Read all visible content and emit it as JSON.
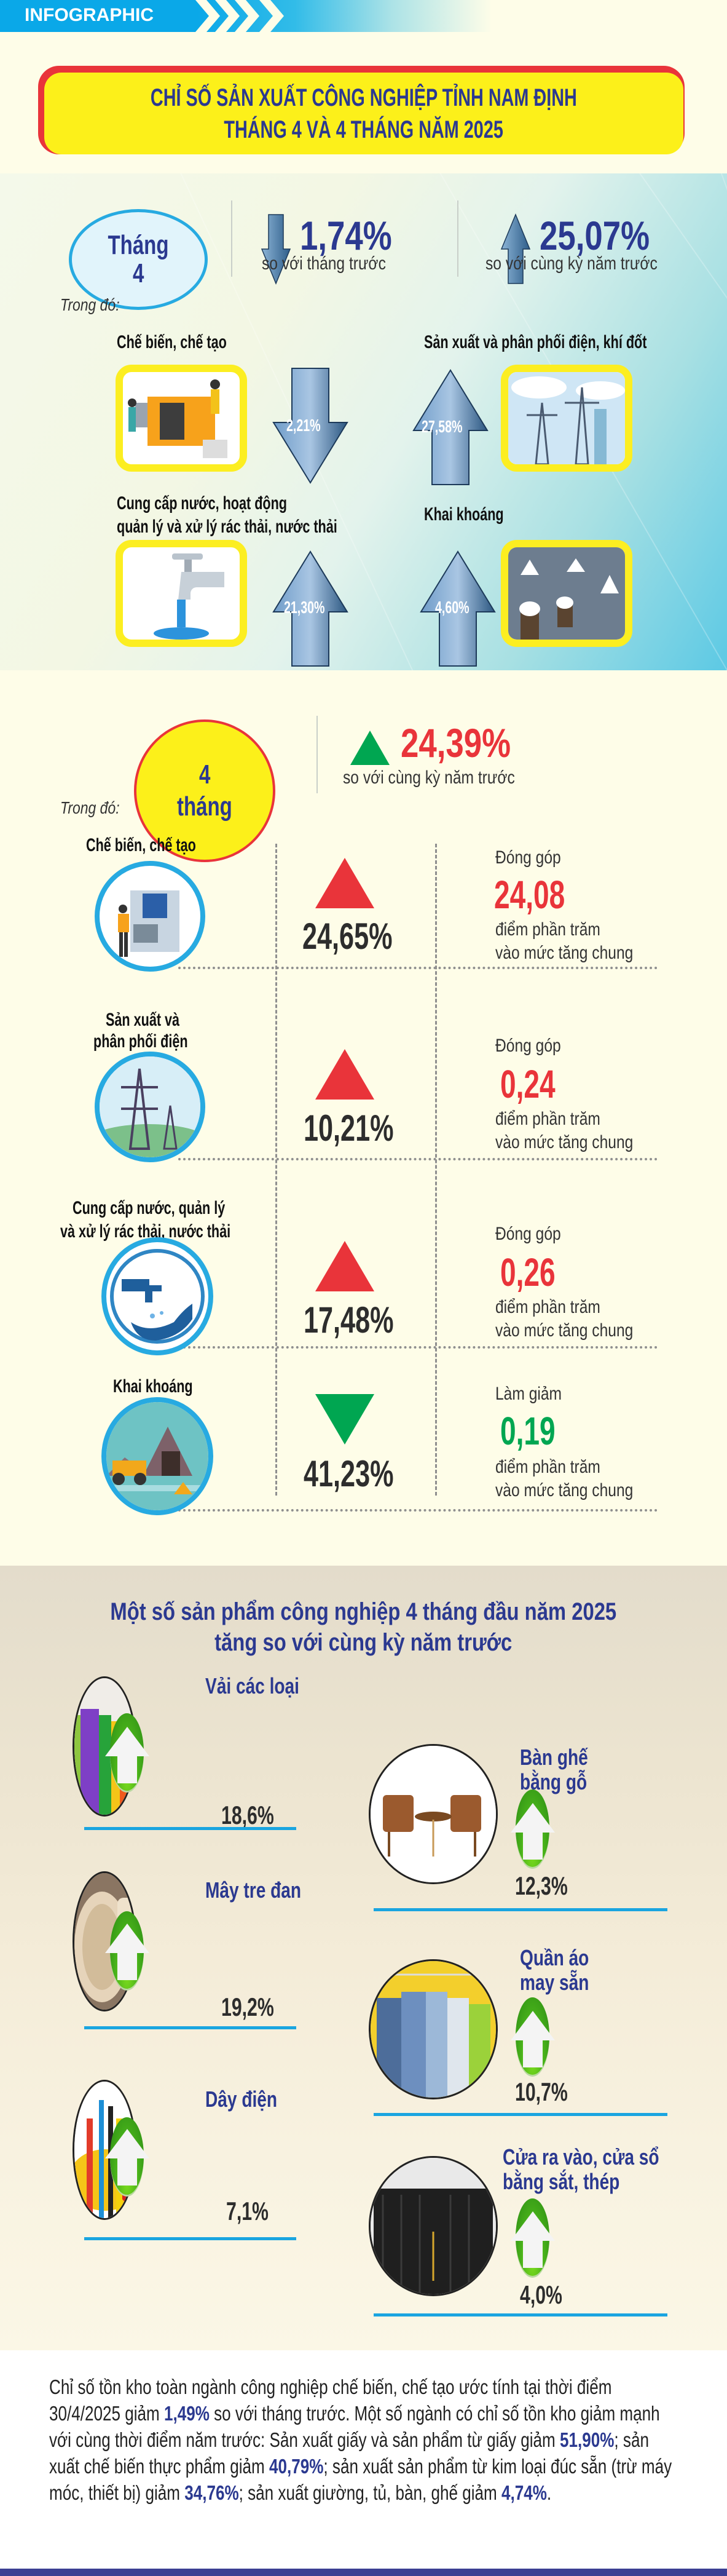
{
  "header": {
    "label": "INFOGRAPHIC",
    "accent_color": "#0aa8e8"
  },
  "title": {
    "line1": "CHỈ SỐ SẢN XUẤT CÔNG NGHIỆP TỈNH NAM ĐỊNH",
    "line2": "THÁNG 4 VÀ 4 THÁNG NĂM 2025",
    "text_color": "#2b3990",
    "bg_color": "#fcf01a",
    "border_color": "#e9343a"
  },
  "month4": {
    "badge_line1": "Tháng",
    "badge_line2": "4",
    "vs_prev_month": {
      "icon": "arrow-down-icon",
      "value": "1,74%",
      "label": "so với tháng trước"
    },
    "vs_prev_year": {
      "icon": "arrow-up-icon",
      "value": "25,07%",
      "label": "so với cùng kỳ năm trước"
    },
    "trong_do": "Trong đó:",
    "sectors": [
      {
        "name": "Chế biến, chế tạo",
        "direction": "down",
        "value": "2,21%",
        "icon": "factory-icon"
      },
      {
        "name": "Sản xuất và phân phối điện, khí đốt",
        "direction": "up",
        "value": "27,58%",
        "icon": "power-tower-icon"
      },
      {
        "name_line1": "Cung cấp nước, hoạt động",
        "name_line2": "quản lý và xử lý rác thải, nước thải",
        "direction": "up",
        "value": "21,30%",
        "icon": "water-tap-icon"
      },
      {
        "name": "Khai khoáng",
        "direction": "up",
        "value": "4,60%",
        "icon": "salt-field-icon"
      }
    ]
  },
  "four_months": {
    "badge_line1": "4",
    "badge_line2": "tháng",
    "total": {
      "icon": "triangle-up-icon",
      "value": "24,39%",
      "label": "so với cùng kỳ năm trước"
    },
    "trong_do": "Trong đó:",
    "sectors": [
      {
        "name_line1": "Chế biến, chế tạo",
        "name_line2": "",
        "direction": "up",
        "value": "24,65%",
        "contrib_label": "Đóng góp",
        "contrib_value": "24,08",
        "contrib_desc1": "điểm phần trăm",
        "contrib_desc2": "vào mức tăng chung",
        "icon": "machine-operator-icon"
      },
      {
        "name_line1": "Sản xuất và",
        "name_line2": "phân phối điện",
        "direction": "up",
        "value": "10,21%",
        "contrib_label": "Đóng góp",
        "contrib_value": "0,24",
        "contrib_desc1": "điểm phần trăm",
        "contrib_desc2": "vào mức tăng chung",
        "icon": "power-line-icon"
      },
      {
        "name_line1": "Cung cấp nước, quản lý",
        "name_line2": "và xử lý rác thải, nước thải",
        "direction": "up",
        "value": "17,48%",
        "contrib_label": "Đóng góp",
        "contrib_value": "0,26",
        "contrib_desc1": "điểm phần trăm",
        "contrib_desc2": "vào mức tăng chung",
        "icon": "tap-hand-icon"
      },
      {
        "name_line1": "Khai khoáng",
        "name_line2": "",
        "direction": "down",
        "value": "41,23%",
        "contrib_label": "Làm giảm",
        "contrib_value": "0,19",
        "contrib_desc1": "điểm phần trăm",
        "contrib_desc2": "vào mức tăng chung",
        "icon": "mining-truck-icon"
      }
    ],
    "colors": {
      "up": "#e9343a",
      "down": "#00a651"
    }
  },
  "products": {
    "title_line1": "Một số sản phẩm công nghiệp 4 tháng đầu năm 2025",
    "title_line2": "tăng so với cùng kỳ năm trước",
    "items": [
      {
        "name_line1": "Vải các loại",
        "name_line2": "",
        "value": "18,6%",
        "icon": "fabric-rolls-icon"
      },
      {
        "name_line1": "Bàn ghế",
        "name_line2": "bằng gỗ",
        "value": "12,3%",
        "icon": "wood-furniture-icon"
      },
      {
        "name_line1": "Mây tre đan",
        "name_line2": "",
        "value": "19,2%",
        "icon": "wicker-basket-icon"
      },
      {
        "name_line1": "Quần áo",
        "name_line2": "may sẵn",
        "value": "10,7%",
        "icon": "clothes-rack-icon"
      },
      {
        "name_line1": "Dây điện",
        "name_line2": "",
        "value": "7,1%",
        "icon": "electric-wire-icon"
      },
      {
        "name_line1": "Cửa ra vào, cửa sổ",
        "name_line2": "bằng sắt, thép",
        "value": "4,0%",
        "icon": "steel-gate-icon"
      }
    ]
  },
  "inventory": {
    "segments": [
      {
        "t": "Chỉ số tồn kho toàn ngành công nghiệp chế biến, chế tạo ước tính tại thời điểm 30/4/2025 giảm ",
        "hl": false
      },
      {
        "t": "1,49%",
        "hl": true
      },
      {
        "t": " so với tháng trước. Một số ngành có chỉ số tồn kho giảm mạnh với cùng thời điểm năm trước: Sản xuất giấy và sản phẩm từ giấy giảm ",
        "hl": false
      },
      {
        "t": "51,90%",
        "hl": true
      },
      {
        "t": "; sản xuất chế biến thực phẩm giảm ",
        "hl": false
      },
      {
        "t": "40,79%",
        "hl": true
      },
      {
        "t": "; sản xuất sản phẩm từ kim loại đúc sẵn (trừ máy móc, thiết bị) giảm ",
        "hl": false
      },
      {
        "t": "34,76%",
        "hl": true
      },
      {
        "t": "; sản xuất giường, tủ, bàn, ghế giảm ",
        "hl": false
      },
      {
        "t": "4,74%",
        "hl": true
      },
      {
        "t": ".",
        "hl": false
      }
    ]
  }
}
